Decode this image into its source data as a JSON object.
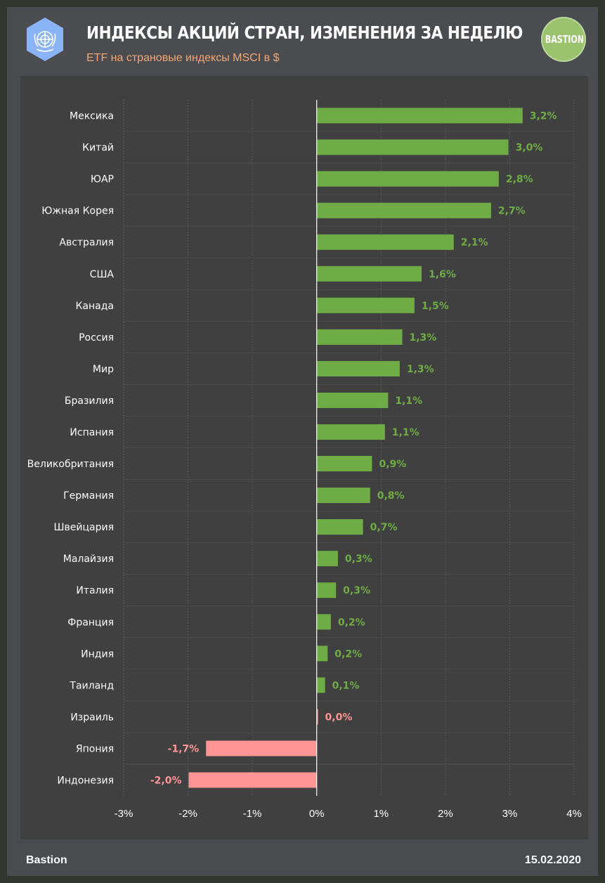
{
  "header": {
    "title": "ИНДЕКСЫ АКЦИЙ СТРАН, ИЗМЕНЕНИЯ ЗА НЕДЕЛЮ",
    "subtitle": "ETF на страновые индексы MSCI в $",
    "brand_badge": "BASTION"
  },
  "footer": {
    "source": "Bastion",
    "date": "15.02.2020"
  },
  "colors": {
    "positive": "#6fac46",
    "negative": "#ff9595",
    "grid": "#585858",
    "axis_text": "#ffffff",
    "logo": "#8ab4f8"
  },
  "icons": {
    "logo": "un-emblem-icon"
  },
  "chart_data": {
    "type": "bar",
    "orientation": "horizontal",
    "title": "ИНДЕКСЫ АКЦИЙ СТРАН, ИЗМЕНЕНИЯ ЗА НЕДЕЛЮ",
    "xlabel": "",
    "ylabel": "",
    "xlim": [
      -3,
      4
    ],
    "xticks": [
      -3,
      -2,
      -1,
      0,
      1,
      2,
      3,
      4
    ],
    "xtick_labels": [
      "-3%",
      "-2%",
      "-1%",
      "0%",
      "1%",
      "2%",
      "3%",
      "4%"
    ],
    "grid": true,
    "categories": [
      "Мексика",
      "Китай",
      "ЮАР",
      "Южная Корея",
      "Австралия",
      "США",
      "Канада",
      "Россия",
      "Мир",
      "Бразилия",
      "Испания",
      "Великобритания",
      "Германия",
      "Швейцария",
      "Малайзия",
      "Италия",
      "Франция",
      "Индия",
      "Таиланд",
      "Израиль",
      "Япония",
      "Индонезия"
    ],
    "values": [
      3.2,
      2.98,
      2.83,
      2.71,
      2.13,
      1.63,
      1.52,
      1.33,
      1.29,
      1.11,
      1.06,
      0.86,
      0.83,
      0.72,
      0.33,
      0.3,
      0.22,
      0.17,
      0.13,
      0.02,
      -1.72,
      -1.99
    ],
    "value_labels": [
      "3,2%",
      "3,0%",
      "2,8%",
      "2,7%",
      "2,1%",
      "1,6%",
      "1,5%",
      "1,3%",
      "1,3%",
      "1,1%",
      "1,1%",
      "0,9%",
      "0,8%",
      "0,7%",
      "0,3%",
      "0,3%",
      "0,2%",
      "0,2%",
      "0,1%",
      "0,0%",
      "-1,7%",
      "-2,0%"
    ],
    "label_colors": [
      "green",
      "green",
      "green",
      "green",
      "green",
      "green",
      "green",
      "green",
      "green",
      "green",
      "green",
      "green",
      "green",
      "green",
      "green",
      "green",
      "green",
      "green",
      "green",
      "red",
      "red",
      "red"
    ]
  }
}
